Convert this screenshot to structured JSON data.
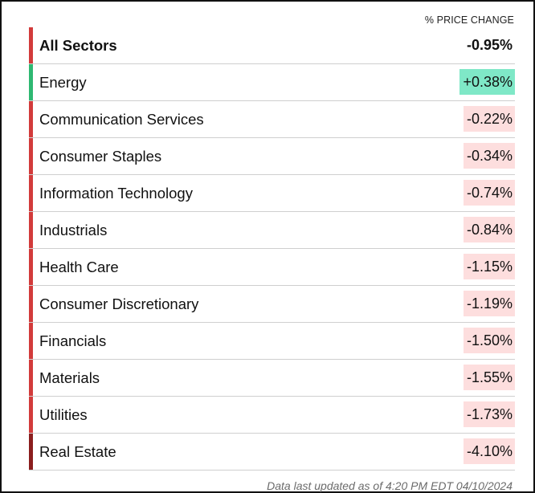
{
  "header": {
    "label": "% PRICE CHANGE"
  },
  "colors": {
    "positive_bar": "#2eb872",
    "positive_bg": "#7fe8c7",
    "negative_bar": "#d23b3b",
    "negative_bg": "#fddede",
    "dark_negative_bar": "#8b1e1e"
  },
  "rows": [
    {
      "name": "All Sectors",
      "change": "-0.95%",
      "trend": "negative",
      "total": true
    },
    {
      "name": "Energy",
      "change": "+0.38%",
      "trend": "positive"
    },
    {
      "name": "Communication Services",
      "change": "-0.22%",
      "trend": "negative"
    },
    {
      "name": "Consumer Staples",
      "change": "-0.34%",
      "trend": "negative"
    },
    {
      "name": "Information Technology",
      "change": "-0.74%",
      "trend": "negative"
    },
    {
      "name": "Industrials",
      "change": "-0.84%",
      "trend": "negative"
    },
    {
      "name": "Health Care",
      "change": "-1.15%",
      "trend": "negative"
    },
    {
      "name": "Consumer Discretionary",
      "change": "-1.19%",
      "trend": "negative"
    },
    {
      "name": "Financials",
      "change": "-1.50%",
      "trend": "negative"
    },
    {
      "name": "Materials",
      "change": "-1.55%",
      "trend": "negative"
    },
    {
      "name": "Utilities",
      "change": "-1.73%",
      "trend": "negative"
    },
    {
      "name": "Real Estate",
      "change": "-4.10%",
      "trend": "strong-negative"
    }
  ],
  "footer": {
    "text": "Data last updated as of 4:20 PM EDT 04/10/2024"
  }
}
